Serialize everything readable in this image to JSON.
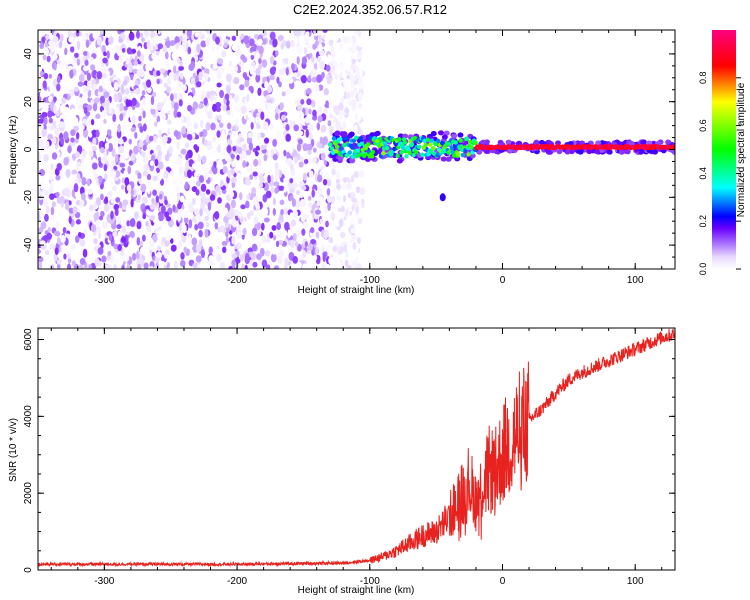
{
  "figure": {
    "title": "C2E2.2024.352.06.57.R12"
  },
  "colors": {
    "snr_line": "#e8231f",
    "spectrogram_background": "#ffffff",
    "colormap": [
      "#ffffff",
      "#e8d9ff",
      "#b07dff",
      "#6a00ff",
      "#0000ff",
      "#00ffff",
      "#00ff00",
      "#ffff00",
      "#ff0000",
      "#ff007f"
    ]
  },
  "chart_data": [
    {
      "id": "spectrogram",
      "type": "heatmap",
      "title": "",
      "xlabel": "Height of straight line (km)",
      "ylabel": "Frequency (Hz)",
      "xlim": [
        -350,
        130
      ],
      "ylim": [
        -50,
        50
      ],
      "x_ticks": [
        -300,
        -200,
        -100,
        0,
        100
      ],
      "y_ticks": [
        -40,
        -20,
        0,
        20,
        40
      ],
      "x_tick_labels": [
        "-300",
        "-200",
        "-100",
        "0",
        "100"
      ],
      "y_tick_labels": [
        "-40",
        "-20",
        "0",
        "20",
        "40"
      ],
      "colorbar": {
        "label": "Normalized spectral amplitude",
        "range": [
          0,
          1
        ],
        "ticks": [
          0.0,
          0.2,
          0.4,
          0.6,
          0.8
        ],
        "tick_labels": [
          "0.0",
          "0.2",
          "0.4",
          "0.6",
          "0.8"
        ]
      },
      "regions": [
        {
          "description": "noise",
          "x_range": [
            -350,
            -130
          ],
          "y_range": [
            -50,
            50
          ],
          "amplitude_range": [
            0.0,
            0.15
          ]
        },
        {
          "description": "signal",
          "x_range": [
            -130,
            130
          ],
          "freq_hz": 1,
          "amplitude_range": [
            0.2,
            1.0
          ]
        },
        {
          "description": "blob",
          "x": -45,
          "freq_hz": -20,
          "amplitude": 0.15
        }
      ],
      "grid": false
    },
    {
      "id": "snr",
      "type": "line",
      "title": "",
      "xlabel": "Height of straight line (km)",
      "ylabel": "SNR (10 * v/v)",
      "xlim": [
        -350,
        130
      ],
      "ylim": [
        0,
        6300
      ],
      "x_ticks": [
        -300,
        -200,
        -100,
        0,
        100
      ],
      "y_ticks": [
        0,
        2000,
        4000,
        6000
      ],
      "x_tick_labels": [
        "-300",
        "-200",
        "-100",
        "0",
        "100"
      ],
      "y_tick_labels": [
        "0",
        "2000",
        "4000",
        "6000"
      ],
      "series": [
        {
          "x": [
            -350,
            -300,
            -250,
            -200,
            -150,
            -120,
            -100,
            -90,
            -80,
            -70,
            -60,
            -50,
            -40,
            -30,
            -25,
            -20,
            -15,
            -10,
            -5,
            0,
            5,
            10,
            15,
            20,
            30,
            40,
            50,
            60,
            70,
            80,
            90,
            100,
            110,
            120,
            130
          ],
          "y": [
            150,
            150,
            150,
            150,
            170,
            180,
            250,
            350,
            500,
            700,
            900,
            1000,
            1400,
            2000,
            2300,
            1800,
            2200,
            2600,
            2600,
            3000,
            3300,
            3500,
            3700,
            3900,
            4200,
            4600,
            4950,
            5150,
            5300,
            5450,
            5600,
            5750,
            5900,
            6050,
            6150
          ]
        }
      ],
      "grid": false
    }
  ]
}
